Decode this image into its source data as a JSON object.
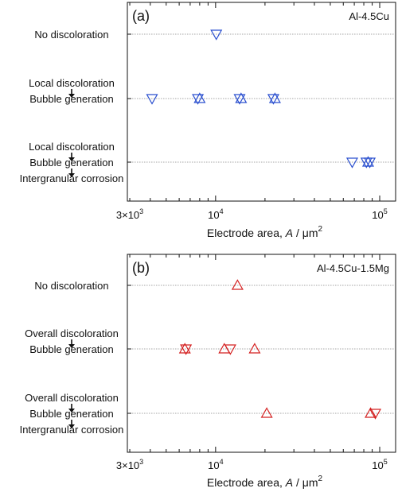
{
  "chart_data": [
    {
      "type": "scatter",
      "panel_label": "(a)",
      "alloy_label": "Al-4.5Cu",
      "xlabel_prefix": "Electrode area, ",
      "xlabel_var": "A",
      "xlabel_unit": " / μm",
      "xlabel_sup": "2",
      "x_scale": "log",
      "xlim": [
        2900,
        125000
      ],
      "x_ticks": [
        {
          "value": 3000,
          "mantissa": "3×10",
          "exp": "3"
        },
        {
          "value": 10000,
          "mantissa": "10",
          "exp": "4"
        },
        {
          "value": 100000,
          "mantissa": "10",
          "exp": "5"
        }
      ],
      "y_categories": [
        {
          "lines": [
            "No discoloration"
          ]
        },
        {
          "lines": [
            "Local discoloration",
            "Bubble generation"
          ]
        },
        {
          "lines": [
            "Local discoloration",
            "Bubble generation",
            "Intergranular corrosion"
          ]
        }
      ],
      "series": [
        {
          "marker": "triangle-down",
          "color": "#2a4fcf",
          "points": [
            [
              10100,
              0
            ],
            [
              4100,
              1
            ],
            [
              7800,
              1
            ],
            [
              14000,
              1
            ],
            [
              22500,
              1
            ],
            [
              68000,
              2
            ],
            [
              83000,
              2
            ],
            [
              87000,
              2
            ]
          ]
        },
        {
          "marker": "triangle-up",
          "color": "#2a4fcf",
          "points": [
            [
              8000,
              1
            ],
            [
              14300,
              1
            ],
            [
              23000,
              1
            ],
            [
              85000,
              2
            ]
          ]
        }
      ],
      "grid": "dotted horizontal lines at categories"
    },
    {
      "type": "scatter",
      "panel_label": "(b)",
      "alloy_label": "Al-4.5Cu-1.5Mg",
      "xlabel_prefix": "Electrode area, ",
      "xlabel_var": "A",
      "xlabel_unit": " / μm",
      "xlabel_sup": "2",
      "x_scale": "log",
      "xlim": [
        2900,
        125000
      ],
      "x_ticks": [
        {
          "value": 3000,
          "mantissa": "3×10",
          "exp": "3"
        },
        {
          "value": 10000,
          "mantissa": "10",
          "exp": "4"
        },
        {
          "value": 100000,
          "mantissa": "10",
          "exp": "5"
        }
      ],
      "y_categories": [
        {
          "lines": [
            "No discoloration"
          ]
        },
        {
          "lines": [
            "Overall discoloration",
            "Bubble generation"
          ]
        },
        {
          "lines": [
            "Overall discoloration",
            "Bubble generation",
            "Intergranular corrosion"
          ]
        }
      ],
      "series": [
        {
          "marker": "triangle-up",
          "color": "#d42020",
          "points": [
            [
              13600,
              0
            ],
            [
              6500,
              1
            ],
            [
              11300,
              1
            ],
            [
              17300,
              1
            ],
            [
              20500,
              2
            ],
            [
              88000,
              2
            ]
          ]
        },
        {
          "marker": "triangle-down",
          "color": "#d42020",
          "points": [
            [
              6600,
              1
            ],
            [
              12300,
              1
            ],
            [
              94000,
              2
            ]
          ]
        }
      ],
      "grid": "dotted horizontal lines at categories"
    }
  ]
}
